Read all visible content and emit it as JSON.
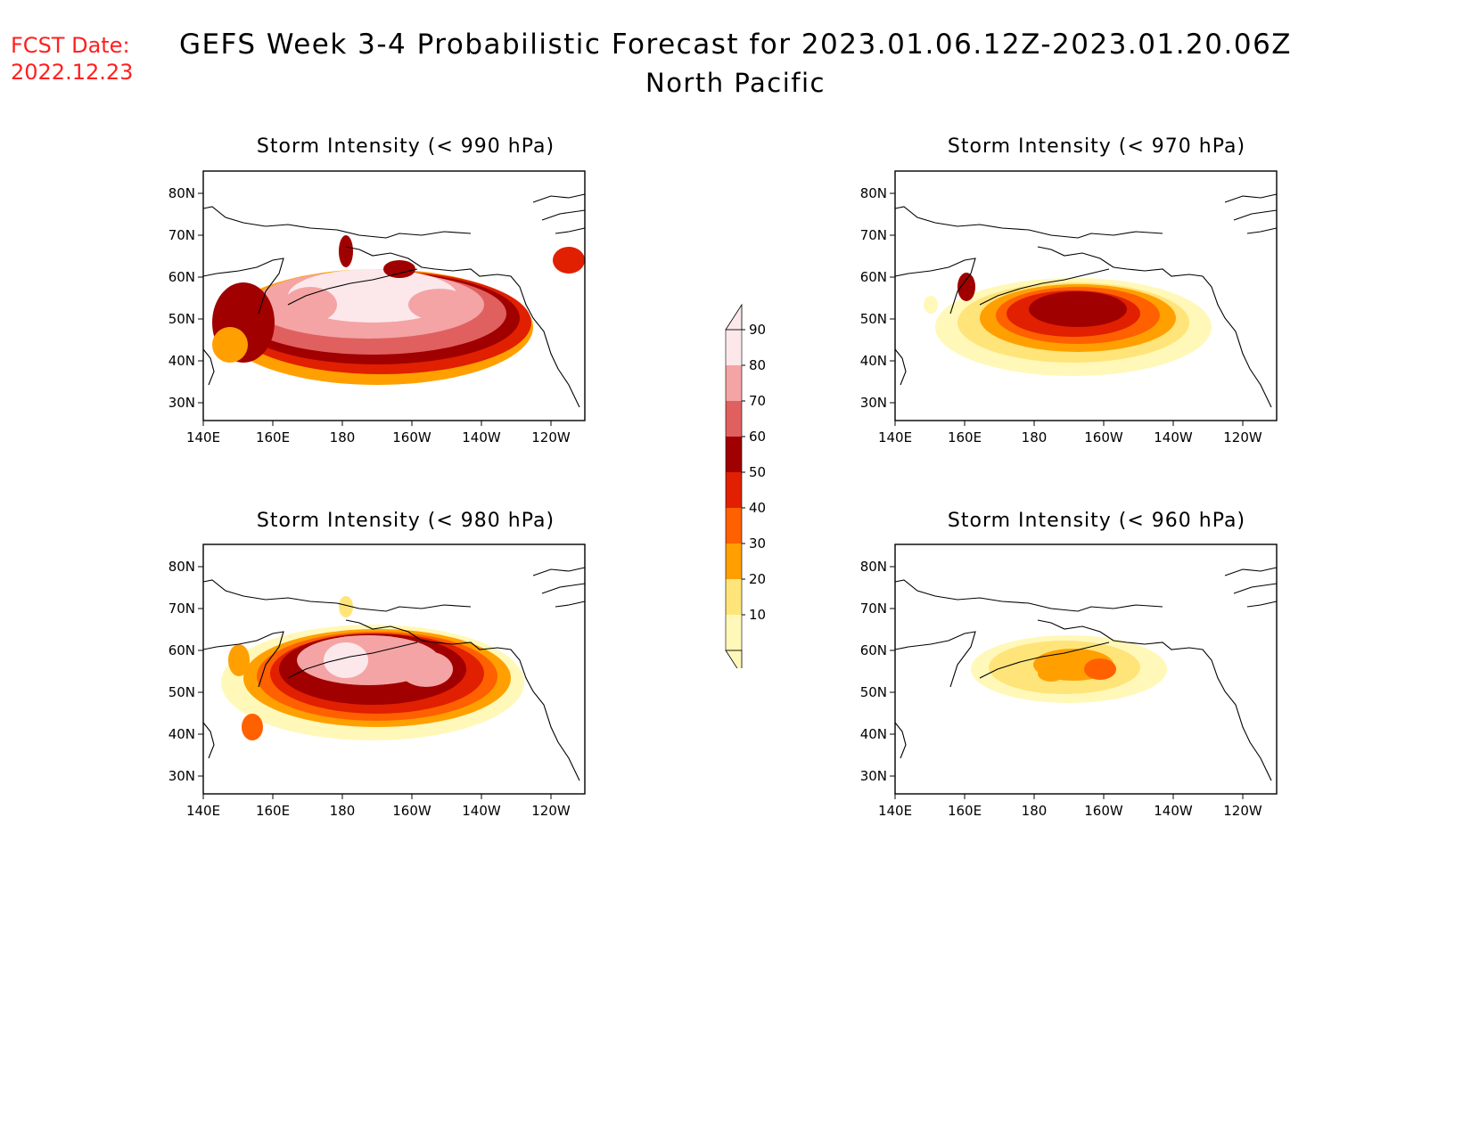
{
  "header": {
    "fcst_label": "FCST Date:",
    "fcst_date": "2022.12.23",
    "title": "GEFS Week 3-4 Probabilistic Forecast for 2023.01.06.12Z-2023.01.20.06Z",
    "subtitle": "North Pacific"
  },
  "map_axes": {
    "lon_ticks": [
      "140E",
      "160E",
      "180",
      "160W",
      "140W",
      "120W"
    ],
    "lat_ticks": [
      "80N",
      "70N",
      "60N",
      "50N",
      "40N",
      "30N"
    ]
  },
  "panels": [
    {
      "id": "p990",
      "title": "Storm Intensity (< 990 hPa)",
      "threshold_hPa": 990
    },
    {
      "id": "p970",
      "title": "Storm Intensity (< 970 hPa)",
      "threshold_hPa": 970
    },
    {
      "id": "p980",
      "title": "Storm Intensity (< 980 hPa)",
      "threshold_hPa": 980
    },
    {
      "id": "p960",
      "title": "Storm Intensity (< 960 hPa)",
      "threshold_hPa": 960
    }
  ],
  "colorbar": {
    "labels": [
      "10",
      "20",
      "30",
      "40",
      "50",
      "60",
      "70",
      "80",
      "90"
    ],
    "colors": [
      "#fff8b8",
      "#ffe47a",
      "#ffa000",
      "#ff6000",
      "#e02000",
      "#a00000",
      "#e06060",
      "#f4a4a4",
      "#fce8ea"
    ]
  }
}
